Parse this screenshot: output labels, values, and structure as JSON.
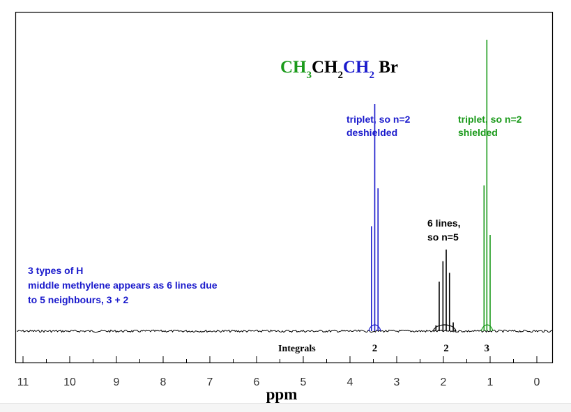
{
  "chart_data": {
    "type": "line",
    "title_parts": [
      {
        "text": "CH",
        "color": "#1a9a1a",
        "sub": false
      },
      {
        "text": "3",
        "color": "#1a9a1a",
        "sub": true
      },
      {
        "text": "CH",
        "color": "#000000",
        "sub": false
      },
      {
        "text": "2",
        "color": "#000000",
        "sub": true
      },
      {
        "text": "CH",
        "color": "#1a1acc",
        "sub": false
      },
      {
        "text": "2",
        "color": "#1a1acc",
        "sub": true
      },
      {
        "text": " Br",
        "color": "#000000",
        "sub": false
      }
    ],
    "xlabel": "ppm",
    "xlim": [
      11.4,
      -0.4
    ],
    "x_reversed": true,
    "x_ticks": [
      "11",
      "10",
      "9",
      "8",
      "7",
      "6",
      "5",
      "4",
      "3",
      "2",
      "1",
      "0"
    ],
    "y_relative_range": [
      0,
      1
    ],
    "peaks": [
      {
        "group": "CH2Br",
        "color": "#1a1acc",
        "lines": [
          {
            "x": 3.54,
            "y": 0.36
          },
          {
            "x": 3.47,
            "y": 0.78
          },
          {
            "x": 3.4,
            "y": 0.49
          }
        ]
      },
      {
        "group": "CH2",
        "color": "#000000",
        "lines": [
          {
            "x": 2.09,
            "y": 0.17
          },
          {
            "x": 2.01,
            "y": 0.24
          },
          {
            "x": 1.94,
            "y": 0.28
          },
          {
            "x": 1.87,
            "y": 0.2
          },
          {
            "x": 1.79,
            "y": 0.03
          },
          {
            "x": 2.16,
            "y": 0.02
          }
        ]
      },
      {
        "group": "CH3",
        "color": "#1a9a1a",
        "lines": [
          {
            "x": 1.13,
            "y": 0.5
          },
          {
            "x": 1.07,
            "y": 1.0
          },
          {
            "x": 1.0,
            "y": 0.33
          }
        ]
      }
    ],
    "integrals_label": "Integrals",
    "integrals": [
      {
        "x": 3.47,
        "value": "2"
      },
      {
        "x": 1.94,
        "value": "2"
      },
      {
        "x": 1.07,
        "value": "3"
      }
    ],
    "annotations": [
      {
        "lines": [
          "triplet, so n=2",
          "deshielded"
        ],
        "color": "#1a1acc"
      },
      {
        "lines": [
          "triplet, so n=2",
          "shielded"
        ],
        "color": "#1a9a1a"
      },
      {
        "lines": [
          "6 lines,",
          "so n=5"
        ],
        "color": "#000000"
      },
      {
        "lines": [
          "3 types of H",
          "middle methylene appears as 6 lines due",
          "to 5 neighbours, 3 + 2"
        ],
        "color": "#1a1acc"
      }
    ]
  }
}
